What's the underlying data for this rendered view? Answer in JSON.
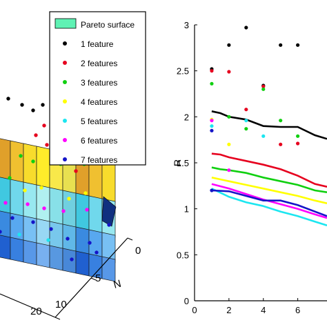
{
  "chart_data": [
    {
      "type": "surface",
      "legend": {
        "placement": "top-right",
        "entries": [
          {
            "label": "Pareto surface",
            "color": "#5ff2b4",
            "marker": "patch"
          },
          {
            "label": "1 feature",
            "color": "#000000"
          },
          {
            "label": "2 features",
            "color": "#e6001e"
          },
          {
            "label": "3 features",
            "color": "#10d010"
          },
          {
            "label": "4 features",
            "color": "#ffff00"
          },
          {
            "label": "5 features",
            "color": "#1ce6f0"
          },
          {
            "label": "6 features",
            "color": "#ff00ff"
          },
          {
            "label": "7 features",
            "color": "#1414c8"
          }
        ]
      },
      "n_axis": {
        "label": "N",
        "ticks": [
          "0",
          "5",
          "10"
        ]
      },
      "x_axis": {
        "ticks": [
          "20"
        ]
      }
    },
    {
      "type": "line",
      "ylabel": "R",
      "xlabel": "",
      "xlim": [
        0,
        7.7
      ],
      "ylim": [
        0,
        3
      ],
      "xticks": [
        0,
        2,
        4,
        6
      ],
      "yticks": [
        0,
        0.5,
        1,
        1.5,
        2,
        2.5,
        3
      ],
      "xtick_labels": [
        "0",
        "2",
        "4",
        "6"
      ],
      "ytick_labels": [
        "0",
        "0.5",
        "1",
        "1.5",
        "2",
        "2.5",
        "3"
      ],
      "grid": false,
      "series": [
        {
          "color": "#000000",
          "line": {
            "x": [
              1,
              1.5,
              2,
              3,
              4,
              5,
              6,
              7,
              7.7
            ],
            "y": [
              2.06,
              2.04,
              2.0,
              1.97,
              1.9,
              1.89,
              1.89,
              1.8,
              1.76
            ]
          },
          "points": {
            "x": [
              1,
              2,
              3,
              4,
              5,
              6
            ],
            "y": [
              2.52,
              2.78,
              2.97,
              2.34,
              2.78,
              2.78
            ]
          }
        },
        {
          "color": "#e6001e",
          "line": {
            "x": [
              1,
              1.5,
              2,
              3,
              4,
              5,
              6,
              7,
              7.7
            ],
            "y": [
              1.6,
              1.59,
              1.56,
              1.52,
              1.48,
              1.43,
              1.36,
              1.27,
              1.24
            ]
          },
          "points": {
            "x": [
              1,
              2,
              3,
              4,
              5,
              6
            ],
            "y": [
              2.5,
              2.49,
              2.08,
              2.33,
              1.7,
              1.71
            ]
          }
        },
        {
          "color": "#10d010",
          "line": {
            "x": [
              1,
              1.5,
              2,
              3,
              4,
              5,
              6,
              7,
              7.7
            ],
            "y": [
              1.45,
              1.43,
              1.42,
              1.39,
              1.34,
              1.3,
              1.26,
              1.2,
              1.18
            ]
          },
          "points": {
            "x": [
              1,
              2,
              3,
              4,
              5,
              6
            ],
            "y": [
              2.36,
              2.0,
              1.87,
              2.3,
              1.96,
              1.79
            ]
          }
        },
        {
          "color": "#ffff00",
          "line": {
            "x": [
              1,
              1.5,
              2,
              3,
              4,
              5,
              6,
              7,
              7.7
            ],
            "y": [
              1.34,
              1.32,
              1.3,
              1.26,
              1.22,
              1.18,
              1.14,
              1.09,
              1.06
            ]
          },
          "points": {
            "x": [
              1,
              2
            ],
            "y": [
              1.97,
              1.7
            ]
          }
        },
        {
          "color": "#1ce6f0",
          "line": {
            "x": [
              1,
              2,
              3,
              4,
              5,
              6,
              7,
              7.7
            ],
            "y": [
              1.22,
              1.13,
              1.07,
              1.03,
              0.97,
              0.92,
              0.86,
              0.82
            ]
          },
          "points": {
            "x": [
              1,
              3,
              4
            ],
            "y": [
              1.9,
              1.96,
              1.79
            ]
          }
        },
        {
          "color": "#ff00ff",
          "line": {
            "x": [
              1,
              2,
              3,
              4,
              5,
              6,
              7,
              7.7
            ],
            "y": [
              1.27,
              1.22,
              1.16,
              1.1,
              1.05,
              1.0,
              0.94,
              0.9
            ]
          },
          "points": {
            "x": [
              1,
              2
            ],
            "y": [
              1.96,
              1.42
            ]
          }
        },
        {
          "color": "#1414c8",
          "line": {
            "x": [
              1,
              2,
              3,
              4,
              5,
              6,
              7,
              7.7
            ],
            "y": [
              1.2,
              1.19,
              1.14,
              1.09,
              1.09,
              1.04,
              0.97,
              0.92
            ]
          },
          "points": {
            "x": [
              1,
              1
            ],
            "y": [
              1.85,
              1.2
            ]
          }
        }
      ]
    }
  ]
}
